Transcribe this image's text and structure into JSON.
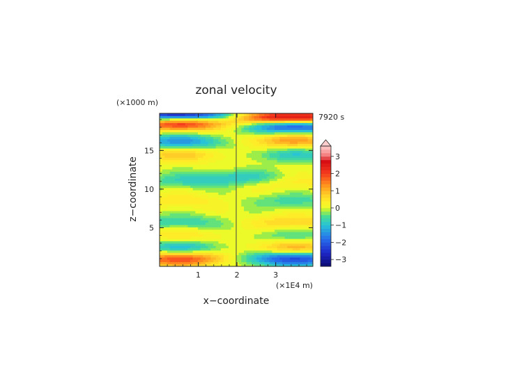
{
  "chart_data": {
    "type": "heatmap",
    "title": "zonal velocity",
    "xlabel": "x−coordinate",
    "ylabel": "z−coordinate",
    "x_unit": "(×1E4 m)",
    "y_unit": "(×1000 m)",
    "time_label": "7920 s",
    "xlim": [
      0,
      3.96
    ],
    "ylim": [
      0,
      19.8
    ],
    "x_ticks": [
      1,
      2,
      3
    ],
    "y_ticks": [
      5,
      10,
      15
    ],
    "colorbar": {
      "range": [
        -3.4,
        3.6
      ],
      "step": 0.2,
      "ticks": [
        -3,
        -2,
        -1,
        0,
        1,
        2,
        3
      ]
    },
    "colors": {
      "background": "#ffffff",
      "frame": "#222222",
      "text": "#222222"
    },
    "features": [
      {
        "sign": "pos",
        "xc": 0.55,
        "z": 18.6,
        "amp": 2.6
      },
      {
        "sign": "neg",
        "xc": 0.55,
        "z": 16.2,
        "amp": 1.4
      },
      {
        "sign": "pos",
        "xc": 0.55,
        "z": 14.5,
        "amp": 0.8
      },
      {
        "sign": "neg",
        "xc": 0.55,
        "z": 11.0,
        "amp": 0.5
      },
      {
        "sign": "pos",
        "xc": 0.55,
        "z": 8.5,
        "amp": 0.45
      },
      {
        "sign": "neg",
        "xc": 0.55,
        "z": 5.8,
        "amp": 0.7
      },
      {
        "sign": "pos",
        "xc": 0.55,
        "z": 4.0,
        "amp": 0.5
      },
      {
        "sign": "neg",
        "xc": 0.55,
        "z": 2.5,
        "amp": 1.0
      },
      {
        "sign": "pos",
        "xc": 0.55,
        "z": 1.0,
        "amp": 1.9
      },
      {
        "sign": "pos",
        "xc": 3.45,
        "z": 19.2,
        "amp": 3.5
      },
      {
        "sign": "neg",
        "xc": 3.45,
        "z": 18.3,
        "amp": 2.8
      },
      {
        "sign": "pos",
        "xc": 3.4,
        "z": 16.3,
        "amp": 1.2
      },
      {
        "sign": "neg",
        "xc": 3.45,
        "z": 14.5,
        "amp": 0.8
      },
      {
        "sign": "pos",
        "xc": 3.45,
        "z": 11.0,
        "amp": 0.5
      },
      {
        "sign": "neg",
        "xc": 3.45,
        "z": 8.5,
        "amp": 0.6
      },
      {
        "sign": "pos",
        "xc": 3.45,
        "z": 5.8,
        "amp": 0.7
      },
      {
        "sign": "neg",
        "xc": 3.45,
        "z": 4.0,
        "amp": 0.5
      },
      {
        "sign": "pos",
        "xc": 3.45,
        "z": 2.5,
        "amp": 1.0
      },
      {
        "sign": "neg",
        "xc": 3.45,
        "z": 1.0,
        "amp": 2.2
      },
      {
        "sign": "neg",
        "xc": 0.5,
        "z": 19.6,
        "amp": 3.2
      },
      {
        "sign": "neg",
        "xc": 2.05,
        "z": 11.5,
        "amp": 0.9
      }
    ]
  }
}
